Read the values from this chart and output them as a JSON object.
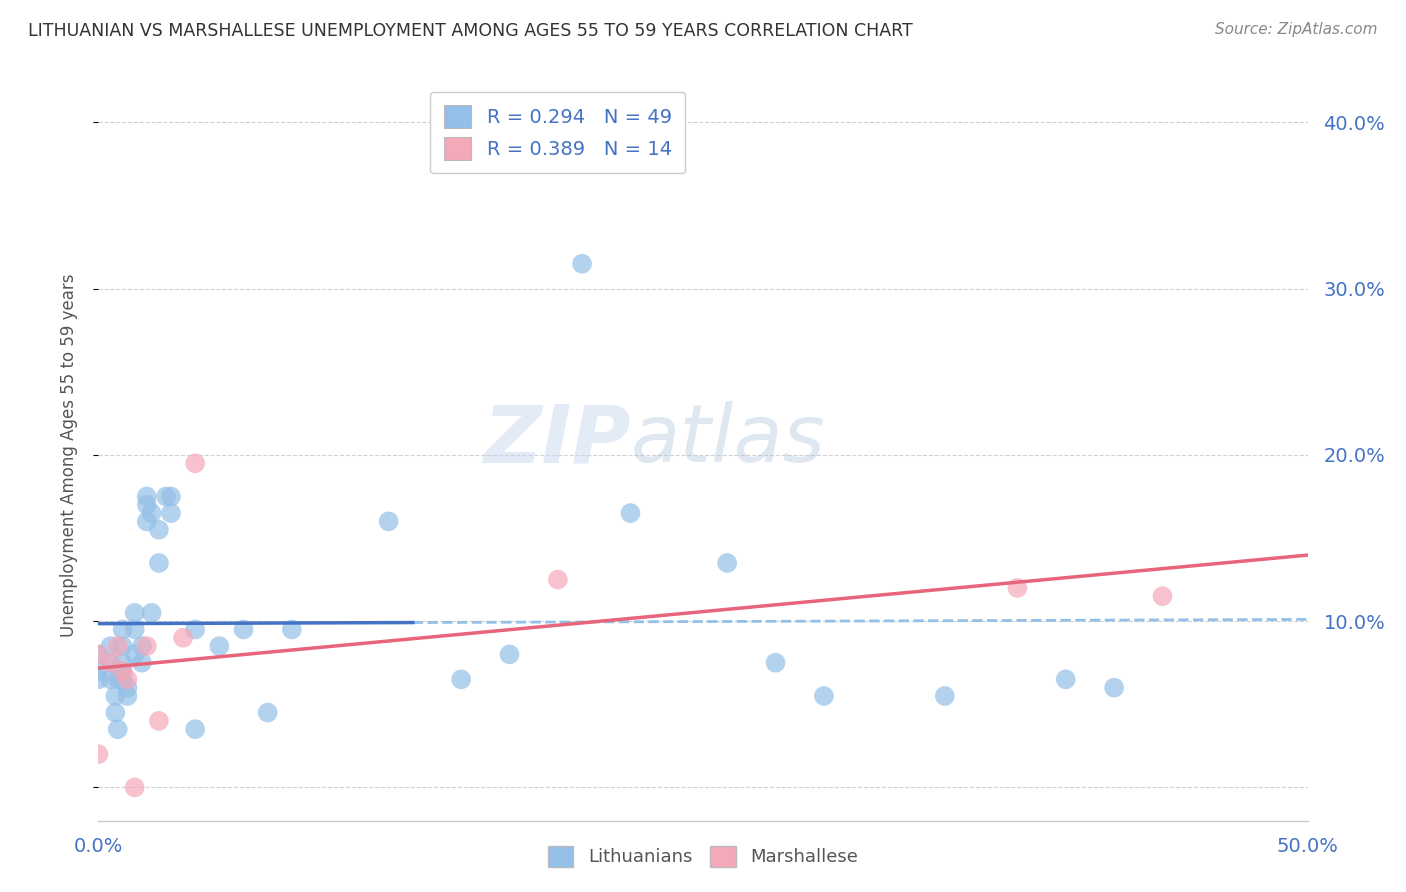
{
  "title": "LITHUANIAN VS MARSHALLESE UNEMPLOYMENT AMONG AGES 55 TO 59 YEARS CORRELATION CHART",
  "source": "Source: ZipAtlas.com",
  "ylabel": "Unemployment Among Ages 55 to 59 years",
  "xlim": [
    0.0,
    0.5
  ],
  "ylim": [
    -0.02,
    0.42
  ],
  "color_blue": "#93bfe8",
  "color_pink": "#f4a8b8",
  "color_blue_line": "#4472c4",
  "color_pink_line": "#e8647a",
  "color_blue_text": "#4472c4",
  "color_dashed_line": "#93bfe8",
  "watermark_zip": "ZIP",
  "watermark_atlas": "atlas",
  "grid_color": "#cccccc",
  "lithuanians_x": [
    0.0,
    0.0,
    0.0,
    0.005,
    0.005,
    0.005,
    0.007,
    0.007,
    0.008,
    0.008,
    0.01,
    0.01,
    0.01,
    0.01,
    0.01,
    0.012,
    0.012,
    0.015,
    0.015,
    0.015,
    0.018,
    0.018,
    0.02,
    0.02,
    0.02,
    0.022,
    0.022,
    0.025,
    0.025,
    0.028,
    0.03,
    0.03,
    0.04,
    0.04,
    0.05,
    0.06,
    0.07,
    0.08,
    0.12,
    0.15,
    0.17,
    0.2,
    0.22,
    0.26,
    0.28,
    0.3,
    0.35,
    0.4,
    0.42
  ],
  "lithuanians_y": [
    0.07,
    0.08,
    0.065,
    0.075,
    0.085,
    0.065,
    0.055,
    0.045,
    0.035,
    0.065,
    0.095,
    0.085,
    0.075,
    0.07,
    0.065,
    0.055,
    0.06,
    0.105,
    0.095,
    0.08,
    0.085,
    0.075,
    0.175,
    0.17,
    0.16,
    0.105,
    0.165,
    0.155,
    0.135,
    0.175,
    0.165,
    0.175,
    0.035,
    0.095,
    0.085,
    0.095,
    0.045,
    0.095,
    0.16,
    0.065,
    0.08,
    0.315,
    0.165,
    0.135,
    0.075,
    0.055,
    0.055,
    0.065,
    0.06
  ],
  "marshallese_x": [
    0.0,
    0.0,
    0.005,
    0.008,
    0.01,
    0.012,
    0.015,
    0.02,
    0.025,
    0.035,
    0.04,
    0.19,
    0.38,
    0.44
  ],
  "marshallese_y": [
    0.02,
    0.08,
    0.075,
    0.085,
    0.07,
    0.065,
    0.0,
    0.085,
    0.04,
    0.09,
    0.195,
    0.125,
    0.12,
    0.115
  ]
}
